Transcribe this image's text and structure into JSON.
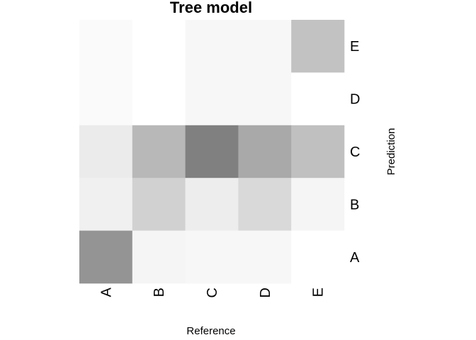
{
  "chart_data": {
    "type": "heatmap",
    "title": "Tree model",
    "xlabel": "Reference",
    "ylabel": "Prediction",
    "x_categories": [
      "A",
      "B",
      "C",
      "D",
      "E"
    ],
    "y_categories": [
      "A",
      "B",
      "C",
      "D",
      "E"
    ],
    "cells": [
      {
        "x": "A",
        "y": "E",
        "value": 0.02
      },
      {
        "x": "B",
        "y": "E",
        "value": 0.0
      },
      {
        "x": "C",
        "y": "E",
        "value": 0.03
      },
      {
        "x": "D",
        "y": "E",
        "value": 0.03
      },
      {
        "x": "E",
        "y": "E",
        "value": 0.24
      },
      {
        "x": "A",
        "y": "D",
        "value": 0.02
      },
      {
        "x": "B",
        "y": "D",
        "value": 0.0
      },
      {
        "x": "C",
        "y": "D",
        "value": 0.03
      },
      {
        "x": "D",
        "y": "D",
        "value": 0.03
      },
      {
        "x": "E",
        "y": "D",
        "value": 0.0
      },
      {
        "x": "A",
        "y": "C",
        "value": 0.08
      },
      {
        "x": "B",
        "y": "C",
        "value": 0.28
      },
      {
        "x": "C",
        "y": "C",
        "value": 0.5
      },
      {
        "x": "D",
        "y": "C",
        "value": 0.34
      },
      {
        "x": "E",
        "y": "C",
        "value": 0.25
      },
      {
        "x": "A",
        "y": "B",
        "value": 0.06
      },
      {
        "x": "B",
        "y": "B",
        "value": 0.18
      },
      {
        "x": "C",
        "y": "B",
        "value": 0.07
      },
      {
        "x": "D",
        "y": "B",
        "value": 0.15
      },
      {
        "x": "E",
        "y": "B",
        "value": 0.04
      },
      {
        "x": "A",
        "y": "A",
        "value": 0.42
      },
      {
        "x": "B",
        "y": "A",
        "value": 0.04
      },
      {
        "x": "C",
        "y": "A",
        "value": 0.03
      },
      {
        "x": "D",
        "y": "A",
        "value": 0.03
      },
      {
        "x": "E",
        "y": "A",
        "value": 0.0
      }
    ],
    "color_low": "#ffffff",
    "color_high": "#808080",
    "value_range": [
      0,
      0.5
    ],
    "legend": "none",
    "grid": false
  }
}
